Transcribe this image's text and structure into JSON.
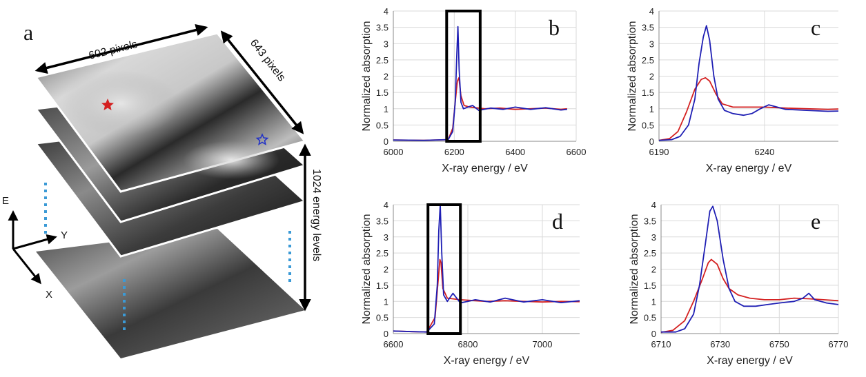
{
  "stack": {
    "panel_label": "a",
    "width_label": "602 pixels",
    "height_label": "643 pixels",
    "depth_label": "1024 energy levels",
    "axis_e": "E",
    "axis_y": "Y",
    "axis_x": "X",
    "colors": {
      "red_star": "#d42020",
      "blue_star": "#2030c8",
      "dots": "#3b9ad6"
    }
  },
  "chart_data": [
    {
      "id": "b",
      "type": "line",
      "panel_label": "b",
      "xlabel": "X-ray energy / eV",
      "ylabel": "Normalized absorption",
      "xlim": [
        6000,
        6600
      ],
      "ylim": [
        0,
        4
      ],
      "xticks": [
        "6000",
        "6200",
        "6400",
        "6600"
      ],
      "yticks": [
        "0",
        "0.5",
        "1",
        "1.5",
        "2",
        "2.5",
        "3",
        "3.5",
        "4"
      ],
      "xtick_values": [
        6000,
        6200,
        6400,
        6600
      ],
      "ytick_values": [
        0,
        0.5,
        1,
        1.5,
        2,
        2.5,
        3,
        3.5,
        4
      ],
      "box": {
        "x0": 6175,
        "x1": 6285
      },
      "series": [
        {
          "name": "blue",
          "color": "#1f1fb4",
          "points": [
            [
              6000,
              0.04
            ],
            [
              6100,
              0.03
            ],
            [
              6180,
              0.05
            ],
            [
              6195,
              0.3
            ],
            [
              6203,
              1.2
            ],
            [
              6208,
              2.6
            ],
            [
              6212,
              3.52
            ],
            [
              6216,
              2.2
            ],
            [
              6222,
              1.2
            ],
            [
              6230,
              1.0
            ],
            [
              6245,
              1.05
            ],
            [
              6260,
              1.1
            ],
            [
              6280,
              0.95
            ],
            [
              6320,
              1.02
            ],
            [
              6360,
              0.98
            ],
            [
              6400,
              1.05
            ],
            [
              6450,
              0.98
            ],
            [
              6500,
              1.03
            ],
            [
              6550,
              0.96
            ],
            [
              6570,
              0.98
            ]
          ]
        },
        {
          "name": "red",
          "color": "#d42020",
          "points": [
            [
              6000,
              0.04
            ],
            [
              6100,
              0.03
            ],
            [
              6180,
              0.05
            ],
            [
              6195,
              0.4
            ],
            [
              6203,
              1.2
            ],
            [
              6210,
              1.85
            ],
            [
              6215,
              1.95
            ],
            [
              6222,
              1.4
            ],
            [
              6232,
              1.1
            ],
            [
              6250,
              1.05
            ],
            [
              6300,
              1.0
            ],
            [
              6350,
              1.02
            ],
            [
              6400,
              0.98
            ],
            [
              6450,
              1.0
            ],
            [
              6500,
              1.02
            ],
            [
              6550,
              0.98
            ],
            [
              6570,
              1.0
            ]
          ]
        }
      ]
    },
    {
      "id": "c",
      "type": "line",
      "panel_label": "c",
      "xlabel": "X-ray energy / eV",
      "ylabel": "Normalized absorption",
      "xlim": [
        6190,
        6275
      ],
      "ylim": [
        0,
        4
      ],
      "xticks": [
        "6190",
        "6240"
      ],
      "yticks": [
        "0",
        "0.5",
        "1",
        "1.5",
        "2",
        "2.5",
        "3",
        "3.5",
        "4"
      ],
      "xtick_values": [
        6190,
        6240
      ],
      "ytick_values": [
        0,
        0.5,
        1,
        1.5,
        2,
        2.5,
        3,
        3.5,
        4
      ],
      "series": [
        {
          "name": "blue",
          "color": "#1f1fb4",
          "points": [
            [
              6190,
              0.03
            ],
            [
              6196,
              0.05
            ],
            [
              6200,
              0.15
            ],
            [
              6204,
              0.5
            ],
            [
              6207,
              1.3
            ],
            [
              6209,
              2.4
            ],
            [
              6211,
              3.2
            ],
            [
              6212.5,
              3.55
            ],
            [
              6214,
              3.1
            ],
            [
              6216,
              2.0
            ],
            [
              6218,
              1.3
            ],
            [
              6221,
              0.95
            ],
            [
              6225,
              0.85
            ],
            [
              6230,
              0.8
            ],
            [
              6234,
              0.85
            ],
            [
              6238,
              1.0
            ],
            [
              6242,
              1.12
            ],
            [
              6246,
              1.05
            ],
            [
              6250,
              0.98
            ],
            [
              6260,
              0.95
            ],
            [
              6270,
              0.92
            ],
            [
              6275,
              0.93
            ]
          ]
        },
        {
          "name": "red",
          "color": "#d42020",
          "points": [
            [
              6190,
              0.03
            ],
            [
              6195,
              0.08
            ],
            [
              6199,
              0.3
            ],
            [
              6203,
              0.9
            ],
            [
              6207,
              1.6
            ],
            [
              6210,
              1.9
            ],
            [
              6212,
              1.95
            ],
            [
              6214,
              1.85
            ],
            [
              6217,
              1.45
            ],
            [
              6220,
              1.15
            ],
            [
              6225,
              1.05
            ],
            [
              6230,
              1.05
            ],
            [
              6240,
              1.05
            ],
            [
              6250,
              1.02
            ],
            [
              6260,
              1.0
            ],
            [
              6270,
              0.98
            ],
            [
              6275,
              0.99
            ]
          ]
        }
      ]
    },
    {
      "id": "d",
      "type": "line",
      "panel_label": "d",
      "xlabel": "X-ray energy / eV",
      "ylabel": "Normalized absorption",
      "xlim": [
        6600,
        7100
      ],
      "ylim": [
        0,
        4
      ],
      "xticks": [
        "6600",
        "6800",
        "7000"
      ],
      "yticks": [
        "0",
        "0.5",
        "1",
        "1.5",
        "2",
        "2.5",
        "3",
        "3.5",
        "4"
      ],
      "xtick_values": [
        6600,
        6800,
        7000
      ],
      "ytick_values": [
        0,
        0.5,
        1,
        1.5,
        2,
        2.5,
        3,
        3.5,
        4
      ],
      "box": {
        "x0": 6693,
        "x1": 6780
      },
      "series": [
        {
          "name": "blue",
          "color": "#1f1fb4",
          "points": [
            [
              6600,
              0.08
            ],
            [
              6650,
              0.06
            ],
            [
              6690,
              0.05
            ],
            [
              6710,
              0.3
            ],
            [
              6718,
              1.5
            ],
            [
              6722,
              3.2
            ],
            [
              6726,
              4.0
            ],
            [
              6730,
              2.5
            ],
            [
              6735,
              1.2
            ],
            [
              6745,
              1.0
            ],
            [
              6760,
              1.25
            ],
            [
              6780,
              0.95
            ],
            [
              6820,
              1.05
            ],
            [
              6860,
              0.98
            ],
            [
              6900,
              1.1
            ],
            [
              6950,
              0.98
            ],
            [
              7000,
              1.05
            ],
            [
              7050,
              0.96
            ],
            [
              7100,
              1.02
            ]
          ]
        },
        {
          "name": "red",
          "color": "#d42020",
          "points": [
            [
              6600,
              0.08
            ],
            [
              6650,
              0.06
            ],
            [
              6690,
              0.05
            ],
            [
              6712,
              0.5
            ],
            [
              6720,
              1.6
            ],
            [
              6725,
              2.3
            ],
            [
              6728,
              2.2
            ],
            [
              6733,
              1.4
            ],
            [
              6745,
              1.1
            ],
            [
              6780,
              1.05
            ],
            [
              6850,
              1.0
            ],
            [
              6900,
              1.02
            ],
            [
              6950,
              1.0
            ],
            [
              7000,
              0.98
            ],
            [
              7050,
              1.0
            ],
            [
              7100,
              0.99
            ]
          ]
        }
      ]
    },
    {
      "id": "e",
      "type": "line",
      "panel_label": "e",
      "xlabel": "X-ray energy / eV",
      "ylabel": "Normalized absorption",
      "xlim": [
        6710,
        6770
      ],
      "ylim": [
        0,
        4
      ],
      "xticks": [
        "6710",
        "6730",
        "6750",
        "6770"
      ],
      "yticks": [
        "0",
        "0.5",
        "1",
        "1.5",
        "2",
        "2.5",
        "3",
        "3.5",
        "4"
      ],
      "xtick_values": [
        6710,
        6730,
        6750,
        6770
      ],
      "ytick_values": [
        0,
        0.5,
        1,
        1.5,
        2,
        2.5,
        3,
        3.5,
        4
      ],
      "series": [
        {
          "name": "blue",
          "color": "#1f1fb4",
          "points": [
            [
              6710,
              0.05
            ],
            [
              6715,
              0.05
            ],
            [
              6718,
              0.15
            ],
            [
              6721,
              0.6
            ],
            [
              6723,
              1.5
            ],
            [
              6725,
              2.8
            ],
            [
              6726.5,
              3.8
            ],
            [
              6727.5,
              3.95
            ],
            [
              6729,
              3.5
            ],
            [
              6731,
              2.3
            ],
            [
              6733,
              1.4
            ],
            [
              6735,
              1.0
            ],
            [
              6738,
              0.85
            ],
            [
              6742,
              0.85
            ],
            [
              6746,
              0.9
            ],
            [
              6750,
              0.95
            ],
            [
              6755,
              1.0
            ],
            [
              6758,
              1.1
            ],
            [
              6760,
              1.25
            ],
            [
              6762,
              1.05
            ],
            [
              6766,
              0.95
            ],
            [
              6770,
              0.9
            ]
          ]
        },
        {
          "name": "red",
          "color": "#d42020",
          "points": [
            [
              6710,
              0.04
            ],
            [
              6714,
              0.1
            ],
            [
              6718,
              0.4
            ],
            [
              6721,
              1.0
            ],
            [
              6724,
              1.7
            ],
            [
              6726,
              2.2
            ],
            [
              6727,
              2.3
            ],
            [
              6729,
              2.15
            ],
            [
              6731,
              1.7
            ],
            [
              6733,
              1.4
            ],
            [
              6736,
              1.2
            ],
            [
              6740,
              1.1
            ],
            [
              6745,
              1.05
            ],
            [
              6750,
              1.05
            ],
            [
              6755,
              1.1
            ],
            [
              6760,
              1.08
            ],
            [
              6765,
              1.05
            ],
            [
              6770,
              1.02
            ]
          ]
        }
      ]
    }
  ]
}
